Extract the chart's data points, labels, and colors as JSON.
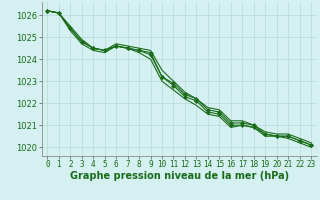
{
  "background_color": "#d4f0f0",
  "grid_color": "#b8dada",
  "line_color": "#1a6b1a",
  "marker_color": "#1a6b1a",
  "xlabel": "Graphe pression niveau de la mer (hPa)",
  "xlabel_fontsize": 7,
  "ylim": [
    1019.6,
    1026.6
  ],
  "xlim": [
    -0.5,
    23.5
  ],
  "yticks": [
    1020,
    1021,
    1022,
    1023,
    1024,
    1025,
    1026
  ],
  "xticks": [
    0,
    1,
    2,
    3,
    4,
    5,
    6,
    7,
    8,
    9,
    10,
    11,
    12,
    13,
    14,
    15,
    16,
    17,
    18,
    19,
    20,
    21,
    22,
    23
  ],
  "series": [
    [
      1026.2,
      1026.1,
      1025.4,
      1024.8,
      1024.5,
      1024.4,
      1024.6,
      1024.5,
      1024.4,
      1024.2,
      1023.2,
      1022.8,
      1022.3,
      1022.1,
      1021.6,
      1021.5,
      1021.0,
      1021.0,
      1020.9,
      1020.6,
      1020.5,
      1020.5,
      1020.3,
      1020.1
    ],
    [
      1026.2,
      1026.1,
      1025.3,
      1024.7,
      1024.4,
      1024.3,
      1024.6,
      1024.5,
      1024.3,
      1024.0,
      1023.0,
      1022.6,
      1022.2,
      1021.9,
      1021.5,
      1021.4,
      1020.9,
      1021.0,
      1020.9,
      1020.5,
      1020.5,
      1020.4,
      1020.2,
      1020.0
    ],
    [
      1026.2,
      1026.1,
      1025.5,
      1024.9,
      1024.5,
      1024.4,
      1024.7,
      1024.6,
      1024.5,
      1024.4,
      1023.5,
      1023.0,
      1022.5,
      1022.2,
      1021.8,
      1021.7,
      1021.2,
      1021.2,
      1021.0,
      1020.7,
      1020.6,
      1020.6,
      1020.4,
      1020.2
    ],
    [
      1026.2,
      1026.1,
      1025.4,
      1024.8,
      1024.5,
      1024.4,
      1024.6,
      1024.5,
      1024.4,
      1024.3,
      1023.2,
      1022.9,
      1022.4,
      1022.2,
      1021.7,
      1021.6,
      1021.1,
      1021.1,
      1021.0,
      1020.6,
      1020.5,
      1020.5,
      1020.3,
      1020.1
    ]
  ],
  "series_with_markers": [
    0,
    3
  ],
  "marker": "D",
  "marker_size": 2,
  "linewidth": 0.8,
  "tick_fontsize": 5.5,
  "ytick_fontsize": 6
}
